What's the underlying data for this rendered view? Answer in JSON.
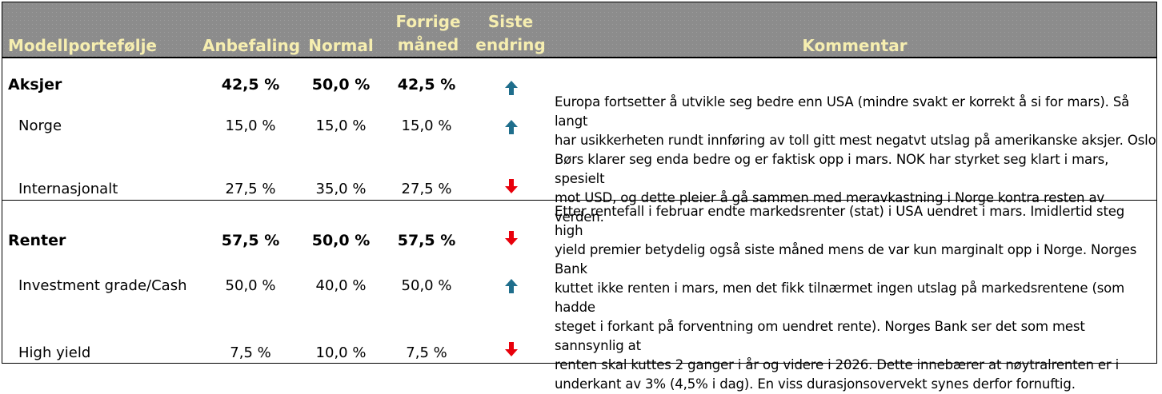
{
  "header": {
    "col1": "Modellportefølje",
    "col2": "Anbefaling",
    "col3": "Normal",
    "col4_line1": "Forrige",
    "col4_line2": "måned",
    "col5_line1": "Siste",
    "col5_line2": "endring",
    "col6": "Kommentar"
  },
  "colors": {
    "header_bg": "#8c8c8c",
    "header_text": "#f6eeb0",
    "up": "#1f6e8c",
    "down": "#e8000b"
  },
  "rows": [
    {
      "label": "Aksjer",
      "anbefaling": "42,5 %",
      "normal": "50,0 %",
      "forrige": "42,5 %",
      "endring": "up-arrow-icon"
    },
    {
      "label": "Norge",
      "anbefaling": "15,0 %",
      "normal": "15,0 %",
      "forrige": "15,0 %",
      "endring": "up-arrow-icon"
    },
    {
      "label": "Internasjonalt",
      "anbefaling": "27,5 %",
      "normal": "35,0 %",
      "forrige": "27,5 %",
      "endring": "down-arrow-icon"
    },
    {
      "label": "Renter",
      "anbefaling": "57,5 %",
      "normal": "50,0 %",
      "forrige": "57,5 %",
      "endring": "down-arrow-icon"
    },
    {
      "label": "Investment grade/Cash",
      "anbefaling": "50,0 %",
      "normal": "40,0 %",
      "forrige": "50,0 %",
      "endring": "up-arrow-icon"
    },
    {
      "label": "High yield",
      "anbefaling": "7,5 %",
      "normal": "10,0 %",
      "forrige": "7,5 %",
      "endring": "down-arrow-icon"
    }
  ],
  "comments": {
    "aksjer": [
      "Europa fortsetter å utvikle seg bedre enn USA (mindre svakt er korrekt å si for mars). Så langt",
      "har usikkerheten rundt innføring av toll gitt mest negatvt utslag på amerikanske aksjer. Oslo",
      "Børs klarer seg enda bedre og er faktisk opp i mars. NOK har styrket seg klart i mars, spesielt",
      "mot USD, og dette pleier å gå sammen med meravkastning i Norge kontra resten av verden."
    ],
    "renter": [
      "Etter rentefall i februar endte markedsrenter (stat) i USA uendret i mars. Imidlertid steg high",
      "yield premier betydelig også siste måned mens de var kun marginalt opp i Norge. Norges Bank",
      "kuttet ikke renten i mars, men det fikk tilnærmet ingen utslag på markedsrentene (som hadde",
      "steget i forkant på forventning om uendret rente). Norges Bank ser det som mest sannsynlig at",
      "renten skal kuttes 2 ganger i år og videre i 2026. Dette innebærer at nøytralrenten er i",
      "underkant av 3% (4,5% i dag). En viss durasjonsovervekt synes derfor fornuftig."
    ]
  }
}
